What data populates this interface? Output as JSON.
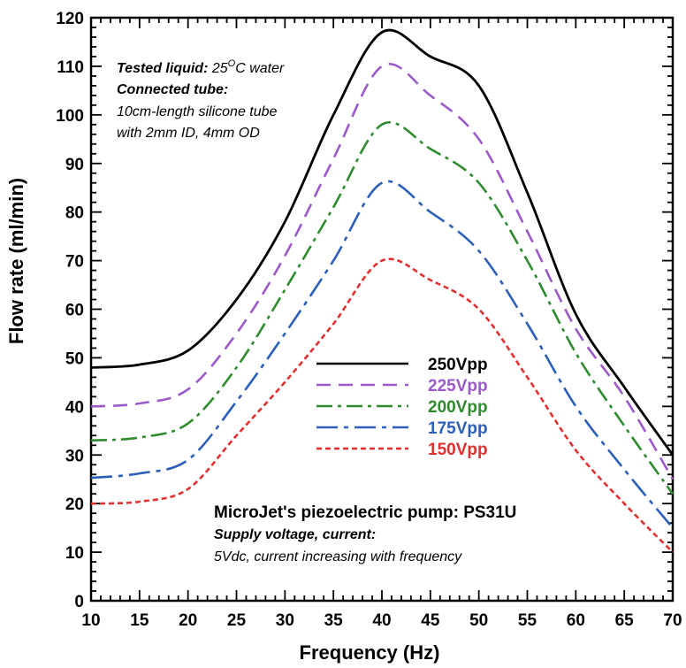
{
  "chart_data": {
    "type": "line",
    "xlabel": "Frequency (Hz)",
    "ylabel": "Flow rate (ml/min)",
    "xlim": [
      10,
      70
    ],
    "ylim": [
      0,
      120
    ],
    "xticks": [
      "10",
      "15",
      "20",
      "25",
      "30",
      "35",
      "40",
      "45",
      "50",
      "55",
      "60",
      "65",
      "70"
    ],
    "yticks": [
      "0",
      "10",
      "20",
      "30",
      "40",
      "50",
      "60",
      "70",
      "80",
      "90",
      "100",
      "110",
      "120"
    ],
    "grid": false,
    "legend_position": "center",
    "series": [
      {
        "name": "250Vpp",
        "color": "#000000",
        "dash": "solid",
        "points": [
          [
            10,
            48
          ],
          [
            15,
            48.6
          ],
          [
            20,
            51.5
          ],
          [
            25,
            62
          ],
          [
            30,
            78
          ],
          [
            35,
            100
          ],
          [
            40,
            117
          ],
          [
            45,
            112
          ],
          [
            50,
            106
          ],
          [
            55,
            84
          ],
          [
            60,
            59
          ],
          [
            65,
            44
          ],
          [
            70,
            30
          ]
        ]
      },
      {
        "name": "225Vpp",
        "color": "#9b59c9",
        "dash": "dashed",
        "points": [
          [
            10,
            40
          ],
          [
            15,
            40.6
          ],
          [
            20,
            43.5
          ],
          [
            25,
            55
          ],
          [
            30,
            71
          ],
          [
            35,
            91
          ],
          [
            40,
            110
          ],
          [
            45,
            104
          ],
          [
            50,
            95
          ],
          [
            55,
            76
          ],
          [
            60,
            56
          ],
          [
            65,
            42
          ],
          [
            70,
            25
          ]
        ]
      },
      {
        "name": "200Vpp",
        "color": "#2e8b2e",
        "dash": "dash-dot",
        "points": [
          [
            10,
            33
          ],
          [
            15,
            33.6
          ],
          [
            20,
            36.5
          ],
          [
            25,
            48
          ],
          [
            30,
            64
          ],
          [
            35,
            81
          ],
          [
            40,
            98
          ],
          [
            45,
            93
          ],
          [
            50,
            86
          ],
          [
            55,
            70
          ],
          [
            60,
            51
          ],
          [
            65,
            36
          ],
          [
            70,
            22
          ]
        ]
      },
      {
        "name": "175Vpp",
        "color": "#2b5fb8",
        "dash": "long-dash-dot",
        "points": [
          [
            10,
            25.3
          ],
          [
            15,
            26.2
          ],
          [
            20,
            29
          ],
          [
            25,
            41
          ],
          [
            30,
            55
          ],
          [
            35,
            70
          ],
          [
            40,
            86
          ],
          [
            45,
            80
          ],
          [
            50,
            72
          ],
          [
            55,
            57
          ],
          [
            60,
            40
          ],
          [
            65,
            27
          ],
          [
            70,
            15
          ]
        ]
      },
      {
        "name": "150Vpp",
        "color": "#e03030",
        "dash": "short-dash",
        "points": [
          [
            10,
            20
          ],
          [
            15,
            20.4
          ],
          [
            20,
            23
          ],
          [
            25,
            34
          ],
          [
            30,
            45
          ],
          [
            35,
            57
          ],
          [
            40,
            70
          ],
          [
            45,
            66
          ],
          [
            50,
            60
          ],
          [
            55,
            46
          ],
          [
            60,
            31
          ],
          [
            65,
            20
          ],
          [
            70,
            10
          ]
        ]
      }
    ],
    "annotations": {
      "top_left": [
        {
          "style": "bold-italic",
          "text": "Tested liquid:",
          "rest": " 25",
          "sup": "O",
          "tail": "C water"
        },
        {
          "style": "bold-italic",
          "text": "Connected tube:"
        },
        {
          "style": "italic",
          "text": "10cm-length silicone tube"
        },
        {
          "style": "italic",
          "text": "with 2mm ID, 4mm OD"
        }
      ],
      "bottom_right": [
        {
          "style": "bold",
          "text": "MicroJet's piezoelectric pump: PS31U"
        },
        {
          "style": "bold-italic",
          "text": "Supply voltage, current:"
        },
        {
          "style": "italic",
          "text": "5Vdc, current increasing with frequency"
        }
      ]
    }
  }
}
